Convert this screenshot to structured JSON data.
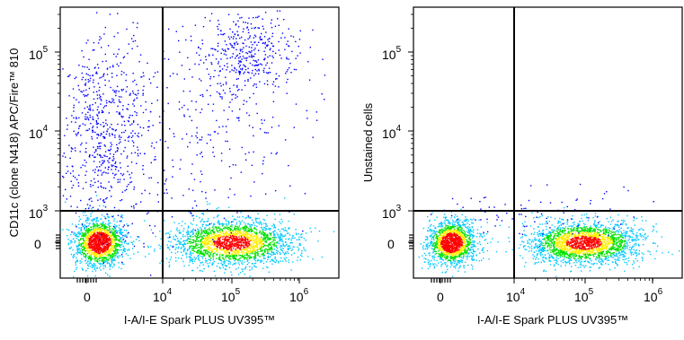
{
  "chart_data": [
    {
      "type": "scatter",
      "title": "",
      "xlabel": "I-A/I-E Spark PLUS UV395™",
      "ylabel": "CD11c (clone N418) APC/Fire™ 810",
      "x_scale": "biexponential",
      "y_scale": "biexponential",
      "x_ticks": [
        {
          "base": "0",
          "exp": ""
        },
        {
          "base": "10",
          "exp": "4"
        },
        {
          "base": "10",
          "exp": "5"
        },
        {
          "base": "10",
          "exp": "6"
        }
      ],
      "y_ticks": [
        {
          "base": "0",
          "exp": ""
        },
        {
          "base": "10",
          "exp": "3"
        },
        {
          "base": "10",
          "exp": "4"
        },
        {
          "base": "10",
          "exp": "5"
        }
      ],
      "gate_x": 10000,
      "gate_y": 1000,
      "populations": [
        {
          "name": "I-A/I-E negative, CD11c negative",
          "x_center": 0,
          "y_center": 0
        },
        {
          "name": "I-A/I-E positive, CD11c negative",
          "x_center": 100000,
          "y_center": 0
        },
        {
          "name": "I-A/I-E positive, CD11c positive",
          "x_center": 150000,
          "y_center": 60000
        },
        {
          "name": "I-A/I-E negative, CD11c positive",
          "x_center": 0,
          "y_center": 5000
        }
      ],
      "density_colors": [
        "#0000ff",
        "#00c8ff",
        "#00e000",
        "#ffee00",
        "#ff0000"
      ],
      "grid": false,
      "legend": "none"
    },
    {
      "type": "scatter",
      "title": "",
      "xlabel": "I-A/I-E Spark PLUS UV395™",
      "ylabel": "Unstained cells",
      "x_scale": "biexponential",
      "y_scale": "biexponential",
      "x_ticks": [
        {
          "base": "0",
          "exp": ""
        },
        {
          "base": "10",
          "exp": "4"
        },
        {
          "base": "10",
          "exp": "5"
        },
        {
          "base": "10",
          "exp": "6"
        }
      ],
      "y_ticks": [
        {
          "base": "0",
          "exp": ""
        },
        {
          "base": "10",
          "exp": "3"
        },
        {
          "base": "10",
          "exp": "4"
        },
        {
          "base": "10",
          "exp": "5"
        }
      ],
      "gate_x": 10000,
      "gate_y": 1000,
      "populations": [
        {
          "name": "I-A/I-E negative, unstained",
          "x_center": 0,
          "y_center": 0
        },
        {
          "name": "I-A/I-E positive, unstained",
          "x_center": 100000,
          "y_center": 0
        }
      ],
      "density_colors": [
        "#0000ff",
        "#00c8ff",
        "#00e000",
        "#ffee00",
        "#ff0000"
      ],
      "grid": false,
      "legend": "none"
    }
  ]
}
